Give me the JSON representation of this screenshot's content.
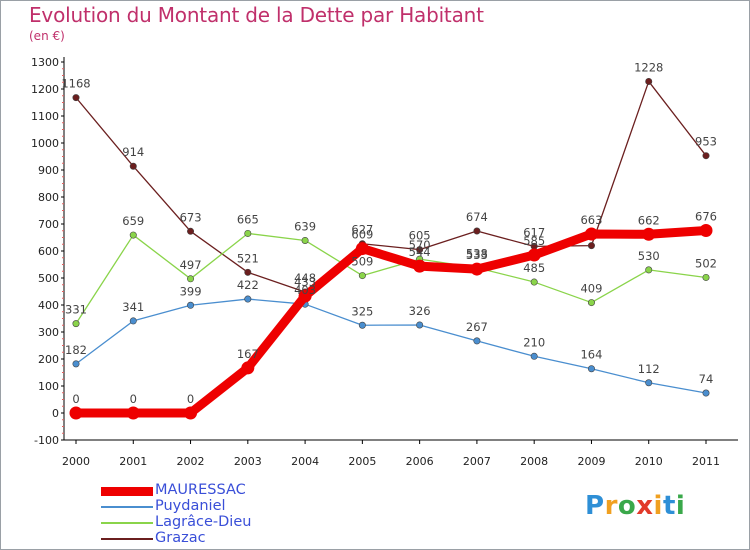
{
  "title": "Evolution du Montant de la Dette par Habitant",
  "subtitle": "(en €)",
  "logo": "Proxiti",
  "chart_data": {
    "type": "line",
    "categories": [
      "2000",
      "2001",
      "2002",
      "2003",
      "2004",
      "2005",
      "2006",
      "2007",
      "2008",
      "2009",
      "2010",
      "2011"
    ],
    "ylim": [
      -100,
      1300
    ],
    "yticks": [
      -100,
      0,
      100,
      200,
      300,
      400,
      500,
      600,
      700,
      800,
      900,
      1000,
      1100,
      1200,
      1300
    ],
    "grid": false,
    "legend_position": "bottom-left",
    "series": [
      {
        "name": "Grazac",
        "color": "#6b1f1f",
        "values": [
          1168,
          914,
          673,
          521,
          448,
          627,
          605,
          674,
          617,
          620,
          1228,
          953
        ]
      },
      {
        "name": "Lagrâce-Dieu",
        "color": "#8ad44a",
        "values": [
          331,
          659,
          497,
          665,
          639,
          509,
          570,
          538,
          485,
          409,
          530,
          502
        ]
      },
      {
        "name": "Puydaniel",
        "color": "#4a8ecf",
        "values": [
          182,
          341,
          399,
          422,
          403,
          325,
          326,
          267,
          210,
          164,
          112,
          74
        ]
      },
      {
        "name": "MAURESSAC",
        "color": "#ee0000",
        "values": [
          0,
          0,
          0,
          167,
          433,
          609,
          544,
          533,
          585,
          663,
          662,
          676
        ]
      }
    ],
    "data_labels": {
      "Grazac": [
        "1168",
        "914",
        "673",
        "521",
        "448",
        "627",
        "605",
        "674",
        "617",
        "",
        "1228",
        "953"
      ],
      "Lagrâce-Dieu": [
        "331",
        "659",
        "497",
        "665",
        "639",
        "509",
        "570",
        "538",
        "485",
        "409",
        "530",
        "502"
      ],
      "Puydaniel": [
        "182",
        "341",
        "399",
        "422",
        "403",
        "325",
        "326",
        "267",
        "210",
        "164",
        "112",
        "74"
      ],
      "MAURESSAC": [
        "0",
        "0",
        "0",
        "167",
        "433",
        "609",
        "544",
        "533",
        "585",
        "663",
        "662",
        "676"
      ]
    },
    "legend": [
      "MAURESSAC",
      "Puydaniel",
      "Lagrâce-Dieu",
      "Grazac"
    ]
  }
}
